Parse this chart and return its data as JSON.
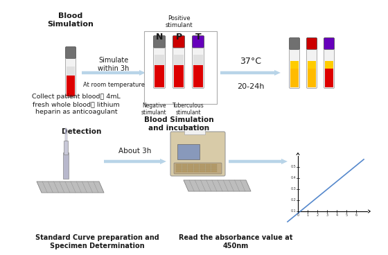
{
  "bg_color": "#ffffff",
  "arrow_color": "#b8d4e8",
  "text_color": "#1a1a1a",
  "tube_N_cap": "#707070",
  "tube_P_cap": "#cc0000",
  "tube_T_cap": "#6600bb",
  "blood_red": "#dd0000",
  "tube_body": "#f2f2f2",
  "tube_border": "#aaaaaa",
  "inc_N_bot": "#ffbb00",
  "inc_P_bot": "#ffbb00",
  "inc_T_bot": "#dd0000",
  "inc_yellow": "#ffcc00",
  "reader_body": "#d8cba8",
  "reader_screen": "#8899bb",
  "graph_line": "#5588cc",
  "box_border": "#aaaaaa",
  "texts": {
    "blood_sim": "Blood\nSimulation",
    "simulate": "Simulate\nwithin 3h",
    "room_temp": "At room temperature",
    "collect": "Collect patient blood： 4mL\nfresh whole blood， lithium\nheparin as anticoagulant",
    "positive": "Positive\nstimulant",
    "negative": "Negative\nstimulant",
    "tuberculous": "Tuberculous\nstimulant",
    "blood_sim_inc": "Blood Simulation\nand incubation",
    "temp37": "37°C",
    "time": "20-24h",
    "detection": "Detection",
    "about3h": "About 3h",
    "read": "Read the absorbance value at\n450nm",
    "standard": "Standard Curve preparation and\nSpecimen Determination"
  }
}
